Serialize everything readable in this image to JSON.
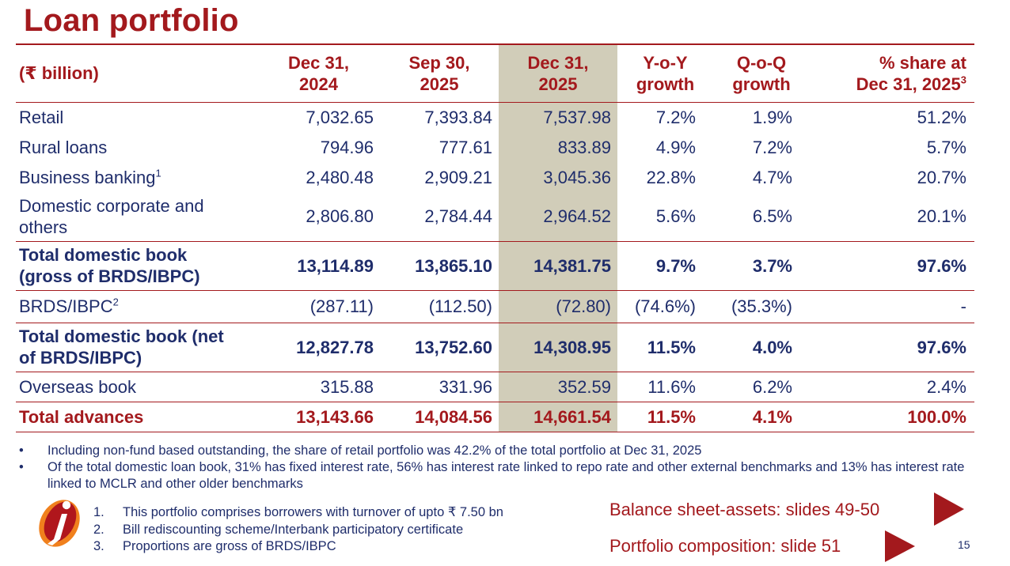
{
  "title": "Loan portfolio",
  "table": {
    "headers": [
      {
        "line1": "(₹ billion)",
        "line2": ""
      },
      {
        "line1": "Dec 31,",
        "line2": "2024"
      },
      {
        "line1": "Sep 30,",
        "line2": "2025"
      },
      {
        "line1": "Dec 31,",
        "line2": "2025"
      },
      {
        "line1": "Y-o-Y",
        "line2": "growth"
      },
      {
        "line1": "Q-o-Q",
        "line2": "growth"
      },
      {
        "line1": "% share at",
        "line2": "Dec 31, 2025",
        "sup": "3"
      }
    ],
    "rows": [
      {
        "label": "Retail",
        "label2": "",
        "sup": "",
        "values": [
          "7,032.65",
          "7,393.84",
          "7,537.98",
          "7.2%",
          "1.9%",
          "51.2%"
        ]
      },
      {
        "label": "Rural loans",
        "label2": "",
        "sup": "",
        "values": [
          "794.96",
          "777.61",
          "833.89",
          "4.9%",
          "7.2%",
          "5.7%"
        ]
      },
      {
        "label": "Business banking",
        "label2": "",
        "sup": "1",
        "values": [
          "2,480.48",
          "2,909.21",
          "3,045.36",
          "22.8%",
          "4.7%",
          "20.7%"
        ]
      },
      {
        "label": "Domestic corporate and",
        "label2": "others",
        "sup": "",
        "values": [
          "2,806.80",
          "2,784.44",
          "2,964.52",
          "5.6%",
          "6.5%",
          "20.1%"
        ]
      },
      {
        "label": "Total domestic book",
        "label2": "(gross of BRDS/IBPC)",
        "sup": "",
        "values": [
          "13,114.89",
          "13,865.10",
          "14,381.75",
          "9.7%",
          "3.7%",
          "97.6%"
        ]
      },
      {
        "label": "BRDS/IBPC",
        "label2": "",
        "sup": "2",
        "values": [
          "(287.11)",
          "(112.50)",
          "(72.80)",
          "(74.6%)",
          "(35.3%)",
          "-"
        ]
      },
      {
        "label": "Total domestic book (net",
        "label2": "of BRDS/IBPC)",
        "sup": "",
        "values": [
          "12,827.78",
          "13,752.60",
          "14,308.95",
          "11.5%",
          "4.0%",
          "97.6%"
        ]
      },
      {
        "label": "Overseas book",
        "label2": "",
        "sup": "",
        "values": [
          "315.88",
          "331.96",
          "352.59",
          "11.6%",
          "6.2%",
          "2.4%"
        ]
      },
      {
        "label": "Total advances",
        "label2": "",
        "sup": "",
        "values": [
          "13,143.66",
          "14,084.56",
          "14,661.54",
          "11.5%",
          "4.1%",
          "100.0%"
        ]
      }
    ]
  },
  "notes": [
    "Including non-fund based outstanding, the share of retail portfolio was 42.2% of the total portfolio at Dec 31, 2025",
    "Of the total domestic loan book, 31% has fixed interest rate, 56% has interest rate linked to repo rate and other external benchmarks and 13% has interest rate linked to MCLR and other older benchmarks"
  ],
  "note_bullet": "•",
  "footnotes": [
    {
      "index": "1.",
      "text": "This portfolio comprises borrowers with turnover of upto ₹ 7.50 bn"
    },
    {
      "index": "2.",
      "text": "Bill rediscounting scheme/Interbank participatory certificate"
    },
    {
      "index": "3.",
      "text": "Proportions are gross of BRDS/IBPC"
    }
  ],
  "cross_references": [
    "Balance sheet-assets: slides 49-50",
    "Portfolio composition: slide 51"
  ],
  "page_number": "15",
  "icons": {
    "logo": "icici-bank-logo-icon",
    "arrow": "play-arrow-icon"
  },
  "colors": {
    "brand_red": "#a3191d",
    "text_navy": "#1f2d6b",
    "highlight_column": "#d1cdb9",
    "logo_orange": "#f0801d"
  }
}
